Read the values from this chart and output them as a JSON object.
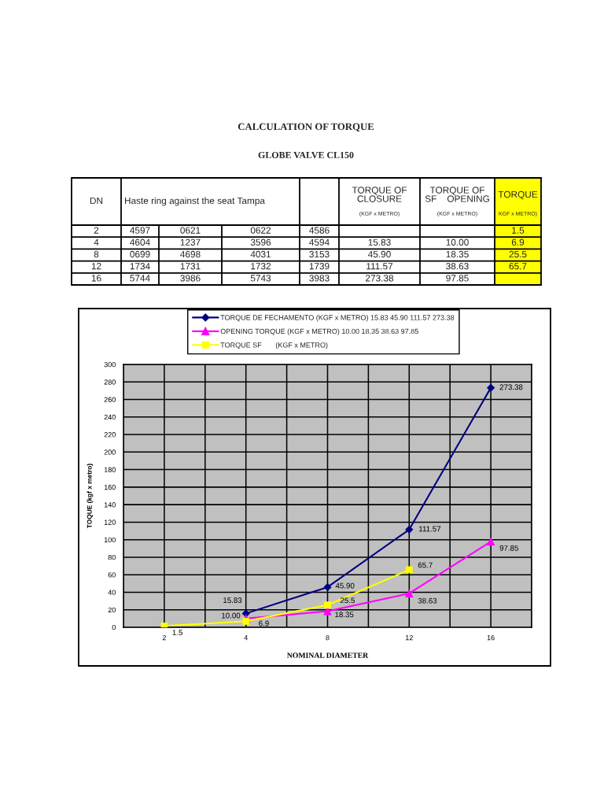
{
  "chart_data": [
    {
      "type": "other",
      "title": "CALCULATION OF TORQUE",
      "subtitle": "GLOBE VALVE CL150",
      "categories": [
        "DN",
        "Haste ring against the seat Tampa",
        null,
        null,
        null,
        "TORQUE OF\nCLOSURE",
        "TORQUE OF\nSF    OPENING",
        "TORQUE"
      ],
      "annotations": [
        "(KGF x METRO)",
        "(KGF x METRO)",
        "KGF x METRO)"
      ],
      "cell_labels": [
        [
          "2",
          "4597",
          "0621",
          "0622",
          "4586",
          null,
          null,
          "1.5"
        ],
        [
          "4",
          "4604",
          "1237",
          "3596",
          "4594",
          "15.83",
          "10.00",
          "6.9"
        ],
        [
          "8",
          "0699",
          "4698",
          "4031",
          "3153",
          "45.90",
          "18.35",
          "25.5"
        ],
        [
          "12",
          "1734",
          "1731",
          "1732",
          "1739",
          "111.57",
          "38.63",
          "65.7"
        ],
        [
          "16",
          "5744",
          "3986",
          "5743",
          "3983",
          "273.38",
          "97.85",
          null
        ]
      ],
      "colors": [
        null,
        null,
        null,
        null,
        null,
        null,
        null,
        "#ffff00"
      ]
    },
    {
      "type": "line",
      "categories": [
        "2",
        "4",
        "8",
        "12",
        "16"
      ],
      "xlabel": "NOMINAL DIAMETER",
      "ylabel": "TOQUE (kgf x metro)",
      "ylim": [
        0,
        300
      ],
      "yticks": [
        0,
        20,
        40,
        60,
        80,
        100,
        120,
        140,
        160,
        180,
        200,
        220,
        240,
        260,
        280,
        300
      ],
      "grid": true,
      "legend": "top",
      "series": [
        {
          "name": "TORQUE DE FECHAMENTO (KGF x METRO) 15.83 45.90 111.57 273.38",
          "color": "#000080",
          "marker": "diamond",
          "values": [
            null,
            15.83,
            45.9,
            111.57,
            273.38
          ],
          "value_labels": [
            null,
            "15.83",
            "45.90",
            "111.57",
            "273.38"
          ]
        },
        {
          "name": "OPENING TORQUE (KGF x METRO) 10.00 18.35 38.63 97.85",
          "color": "#ff00ff",
          "marker": "triangle",
          "values": [
            null,
            10.0,
            18.35,
            38.63,
            97.85
          ],
          "value_labels": [
            null,
            "10.00",
            "18.35",
            "38.63",
            "97.85"
          ]
        },
        {
          "name": "TORQUE SF       (KGF x METRO)",
          "color": "#ffff00",
          "marker": "square",
          "values": [
            1.5,
            6.9,
            25.5,
            65.7,
            null
          ],
          "value_labels": [
            "1.5",
            "6.9",
            "25.5",
            "65.7",
            null
          ]
        }
      ]
    }
  ]
}
